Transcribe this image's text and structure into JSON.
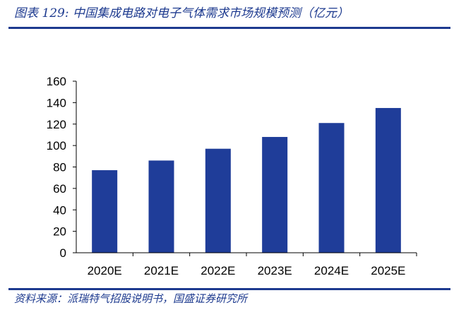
{
  "header": {
    "title": "图表 129: 中国集成电路对电子气体需求市场规模预测（亿元）"
  },
  "footer": {
    "source": "资料来源：派瑞特气招股说明书，国盛证券研究所"
  },
  "colors": {
    "bar": "#1f3d99",
    "accent": "#1d3a8f",
    "axis": "#000000"
  },
  "chart_data": {
    "type": "bar",
    "categories": [
      "2020E",
      "2021E",
      "2022E",
      "2023E",
      "2024E",
      "2025E"
    ],
    "values": [
      77,
      86,
      97,
      108,
      121,
      135
    ],
    "ylim": [
      0,
      160
    ],
    "yticks": [
      0,
      20,
      40,
      60,
      80,
      100,
      120,
      140,
      160
    ],
    "grid": false,
    "legend": "none"
  }
}
